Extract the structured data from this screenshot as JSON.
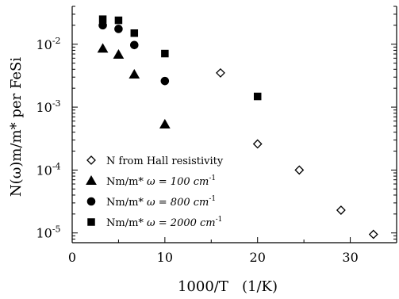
{
  "chart_data": {
    "type": "scatter",
    "xlabel": "1000/T   (1/K)",
    "ylabel": "N(ω)m/m* per FeSi",
    "xlim": [
      0,
      35
    ],
    "ylim": [
      7e-06,
      0.04
    ],
    "yscale": "log",
    "x_ticks": [
      0,
      10,
      20,
      30
    ],
    "y_ticks": [
      {
        "value": 1e-05,
        "base": "10",
        "exp": "-5"
      },
      {
        "value": 0.0001,
        "base": "10",
        "exp": "-4"
      },
      {
        "value": 0.001,
        "base": "10",
        "exp": "-3"
      },
      {
        "value": 0.01,
        "base": "10",
        "exp": "-2"
      }
    ],
    "legend_position": "bottom-left",
    "series": [
      {
        "name": "N from Hall resistivity",
        "marker": "open-diamond",
        "x": [
          16,
          20,
          24.5,
          29,
          32.5
        ],
        "y": [
          0.0035,
          0.00026,
          0.0001,
          2.3e-05,
          9.5e-06
        ]
      },
      {
        "name": "Nm/m* ω = 100  cm-1",
        "label_main": "Nm/m*",
        "label_omega": "ω = 100  cm",
        "label_sup": "-1",
        "marker": "filled-triangle",
        "x": [
          3.3,
          5,
          6.7,
          10
        ],
        "y": [
          0.0085,
          0.0068,
          0.0033,
          0.00053
        ]
      },
      {
        "name": "Nm/m* ω = 800  cm-1",
        "label_main": "Nm/m*",
        "label_omega": "ω = 800  cm",
        "label_sup": "-1",
        "marker": "filled-circle",
        "x": [
          3.3,
          5,
          6.7,
          10
        ],
        "y": [
          0.02,
          0.0175,
          0.0097,
          0.0026
        ]
      },
      {
        "name": "Nm/m* ω = 2000 cm-1",
        "label_main": "Nm/m*",
        "label_omega": "ω = 2000 cm",
        "label_sup": "-1",
        "marker": "filled-square",
        "x": [
          3.3,
          5,
          6.7,
          10,
          20
        ],
        "y": [
          0.025,
          0.024,
          0.015,
          0.0071,
          0.00148
        ]
      }
    ]
  }
}
